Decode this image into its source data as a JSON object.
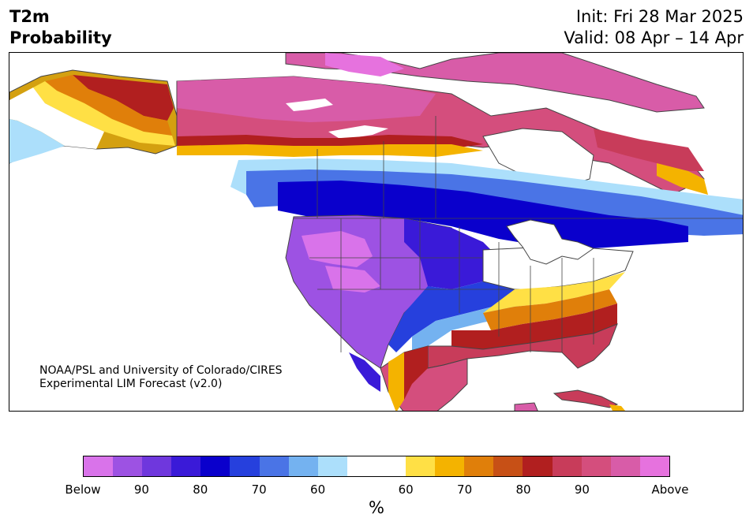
{
  "header": {
    "variable": "T2m",
    "product": "Probability",
    "init": "Init: Fri 28 Mar 2025",
    "valid": "Valid: 08 Apr – 14 Apr"
  },
  "credit": {
    "line1": "NOAA/PSL and University of Colorado/CIRES",
    "line2": "Experimental LIM Forecast (v2.0)"
  },
  "map": {
    "region": "North America",
    "regions": [
      {
        "name": "Alaska and Yukon",
        "category": "Above 60-80%"
      },
      {
        "name": "Nunavut / Arctic Canada",
        "category": "Above 90%"
      },
      {
        "name": "Southern Canada / Great Lakes",
        "category": "Below 70-80%"
      },
      {
        "name": "Western US / Great Basin",
        "category": "Below 90%+"
      },
      {
        "name": "Southeast US / Mexico",
        "category": "Above 80-90%"
      }
    ]
  },
  "colorbar": {
    "units": "%",
    "colors": [
      "#d973ea",
      "#9d52e3",
      "#6f37dd",
      "#3a1ad8",
      "#0a00cc",
      "#2640dd",
      "#4a74e6",
      "#74b2f0",
      "#acdffb",
      "#ffffff",
      "#ffffff",
      "#ffe045",
      "#f4b300",
      "#e07f0a",
      "#c75016",
      "#b11f1f",
      "#c83c5a",
      "#d44e7d",
      "#d85ca8",
      "#e672de"
    ],
    "tick_labels": [
      "Below",
      "90",
      "80",
      "70",
      "60",
      "60",
      "70",
      "80",
      "90",
      "Above"
    ]
  }
}
